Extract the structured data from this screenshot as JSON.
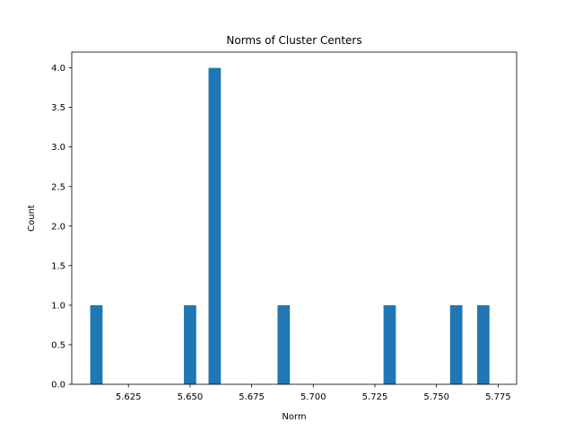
{
  "chart_data": {
    "type": "bar",
    "title": "Norms of Cluster Centers",
    "xlabel": "Norm",
    "ylabel": "Count",
    "xlim": [
      5.602,
      5.7825
    ],
    "ylim": [
      0,
      4.2
    ],
    "grid": false,
    "legend": "none",
    "bar_color": "#1f77b4",
    "bin_width": 0.005,
    "bins": [
      {
        "x_start": 5.6095,
        "x_end": 5.6145,
        "count": 1
      },
      {
        "x_start": 5.6475,
        "x_end": 5.6525,
        "count": 1
      },
      {
        "x_start": 5.6575,
        "x_end": 5.6625,
        "count": 4
      },
      {
        "x_start": 5.6855,
        "x_end": 5.6905,
        "count": 1
      },
      {
        "x_start": 5.7285,
        "x_end": 5.7335,
        "count": 1
      },
      {
        "x_start": 5.7555,
        "x_end": 5.7605,
        "count": 1
      },
      {
        "x_start": 5.7665,
        "x_end": 5.7715,
        "count": 1
      }
    ],
    "x_ticks": [
      "5.625",
      "5.650",
      "5.675",
      "5.700",
      "5.725",
      "5.750",
      "5.775"
    ],
    "y_ticks": [
      "0.0",
      "0.5",
      "1.0",
      "1.5",
      "2.0",
      "2.5",
      "3.0",
      "3.5",
      "4.0"
    ]
  }
}
